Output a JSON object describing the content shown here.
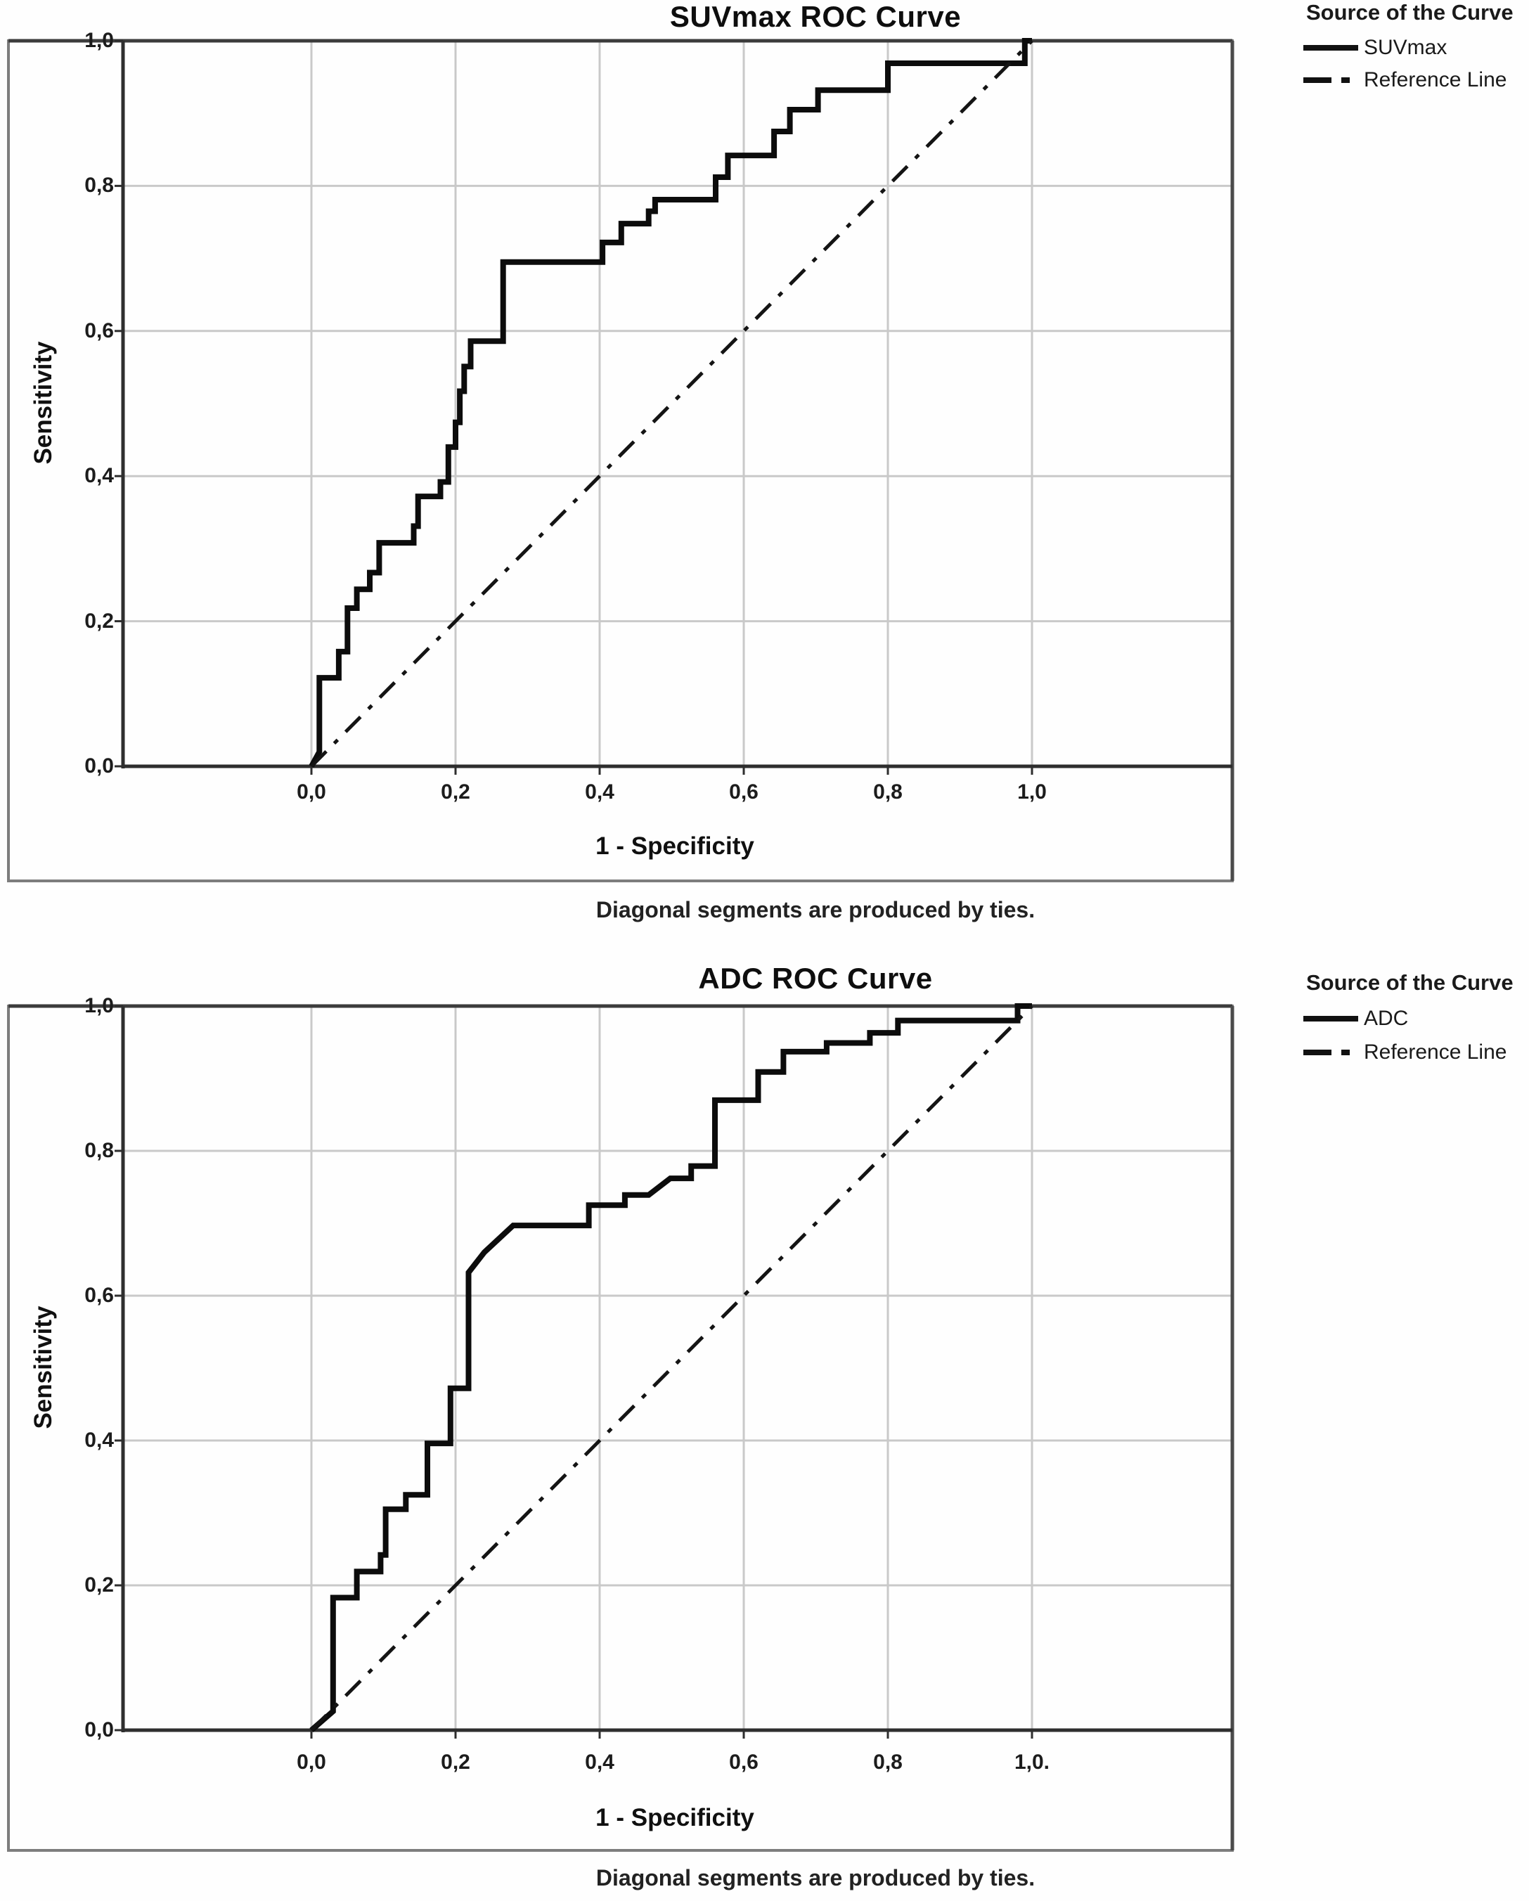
{
  "page_type": "SPSS ROC curve output, two stacked panels",
  "chart_data": [
    {
      "type": "line",
      "subtype": "roc-step",
      "title": "SUVmax ROC Curve",
      "xlabel": "1 - Specificity",
      "ylabel": "Sensitivity",
      "caption": "Diagonal segments are produced by ties.",
      "xlim": [
        0,
        1
      ],
      "ylim": [
        0,
        1
      ],
      "grid": true,
      "x_tick_labels": [
        "0,0",
        "0,2",
        "0,4",
        "0,6",
        "0,8",
        "1,0"
      ],
      "y_tick_labels": [
        "1,0",
        "0,8",
        "0,6",
        "0,4",
        "0,2",
        "0,0"
      ],
      "legend_position": "top-right",
      "legend": {
        "title": "Source of the Curve",
        "items": [
          {
            "label": "SUVmax",
            "line_style": "solid"
          },
          {
            "label": "Reference Line",
            "line_style": "dash-dot"
          }
        ]
      },
      "series": [
        {
          "name": "SUVmax",
          "style": "solid",
          "points": [
            [
              0,
              0
            ],
            [
              0.011,
              0.02
            ],
            [
              0.011,
              0.122
            ],
            [
              0.038,
              0.122
            ],
            [
              0.038,
              0.158
            ],
            [
              0.05,
              0.158
            ],
            [
              0.05,
              0.218
            ],
            [
              0.063,
              0.218
            ],
            [
              0.063,
              0.244
            ],
            [
              0.081,
              0.244
            ],
            [
              0.081,
              0.267
            ],
            [
              0.094,
              0.267
            ],
            [
              0.094,
              0.308
            ],
            [
              0.142,
              0.308
            ],
            [
              0.142,
              0.331
            ],
            [
              0.148,
              0.331
            ],
            [
              0.148,
              0.372
            ],
            [
              0.179,
              0.372
            ],
            [
              0.179,
              0.392
            ],
            [
              0.19,
              0.392
            ],
            [
              0.19,
              0.44
            ],
            [
              0.2,
              0.44
            ],
            [
              0.2,
              0.474
            ],
            [
              0.206,
              0.474
            ],
            [
              0.206,
              0.517
            ],
            [
              0.212,
              0.517
            ],
            [
              0.212,
              0.551
            ],
            [
              0.221,
              0.551
            ],
            [
              0.221,
              0.586
            ],
            [
              0.266,
              0.586
            ],
            [
              0.266,
              0.695
            ],
            [
              0.404,
              0.695
            ],
            [
              0.404,
              0.722
            ],
            [
              0.43,
              0.722
            ],
            [
              0.43,
              0.748
            ],
            [
              0.468,
              0.748
            ],
            [
              0.468,
              0.765
            ],
            [
              0.477,
              0.765
            ],
            [
              0.477,
              0.781
            ],
            [
              0.561,
              0.781
            ],
            [
              0.561,
              0.812
            ],
            [
              0.578,
              0.812
            ],
            [
              0.578,
              0.842
            ],
            [
              0.642,
              0.842
            ],
            [
              0.642,
              0.875
            ],
            [
              0.664,
              0.875
            ],
            [
              0.664,
              0.905
            ],
            [
              0.703,
              0.905
            ],
            [
              0.703,
              0.932
            ],
            [
              0.8,
              0.932
            ],
            [
              0.8,
              0.969
            ],
            [
              0.99,
              0.969
            ],
            [
              0.99,
              1
            ],
            [
              1,
              1
            ]
          ]
        },
        {
          "name": "Reference Line",
          "style": "dash-dot",
          "points": [
            [
              0,
              0
            ],
            [
              1,
              1
            ]
          ]
        }
      ]
    },
    {
      "type": "line",
      "subtype": "roc-step",
      "title": "ADC ROC Curve",
      "xlabel": "1 - Specificity",
      "ylabel": "Sensitivity",
      "caption": "Diagonal segments are produced by ties.",
      "xlim": [
        0,
        1
      ],
      "ylim": [
        0,
        1
      ],
      "grid": true,
      "x_tick_labels": [
        "0,0",
        "0,2",
        "0,4",
        "0,6",
        "0,8",
        "1,0."
      ],
      "y_tick_labels": [
        "1,0",
        "0,8",
        "0,6",
        "0,4",
        "0,2",
        "0,0"
      ],
      "legend_position": "top-right",
      "legend": {
        "title": "Source of the Curve",
        "items": [
          {
            "label": "ADC",
            "line_style": "solid"
          },
          {
            "label": "Reference Line",
            "line_style": "dash-dot"
          }
        ]
      },
      "series": [
        {
          "name": "ADC",
          "style": "solid",
          "points": [
            [
              0,
              0
            ],
            [
              0.03,
              0.026
            ],
            [
              0.03,
              0.183
            ],
            [
              0.063,
              0.183
            ],
            [
              0.063,
              0.219
            ],
            [
              0.096,
              0.219
            ],
            [
              0.096,
              0.242
            ],
            [
              0.103,
              0.242
            ],
            [
              0.103,
              0.305
            ],
            [
              0.131,
              0.305
            ],
            [
              0.131,
              0.325
            ],
            [
              0.161,
              0.325
            ],
            [
              0.161,
              0.396
            ],
            [
              0.193,
              0.396
            ],
            [
              0.193,
              0.472
            ],
            [
              0.218,
              0.472
            ],
            [
              0.218,
              0.632
            ],
            [
              0.24,
              0.66
            ],
            [
              0.28,
              0.697
            ],
            [
              0.385,
              0.697
            ],
            [
              0.385,
              0.725
            ],
            [
              0.435,
              0.725
            ],
            [
              0.435,
              0.739
            ],
            [
              0.468,
              0.739
            ],
            [
              0.498,
              0.762
            ],
            [
              0.527,
              0.762
            ],
            [
              0.527,
              0.779
            ],
            [
              0.56,
              0.779
            ],
            [
              0.56,
              0.87
            ],
            [
              0.62,
              0.87
            ],
            [
              0.62,
              0.909
            ],
            [
              0.655,
              0.909
            ],
            [
              0.655,
              0.937
            ],
            [
              0.715,
              0.937
            ],
            [
              0.715,
              0.949
            ],
            [
              0.775,
              0.949
            ],
            [
              0.775,
              0.963
            ],
            [
              0.814,
              0.963
            ],
            [
              0.814,
              0.98
            ],
            [
              0.98,
              0.98
            ],
            [
              0.98,
              1
            ],
            [
              1,
              1
            ]
          ]
        },
        {
          "name": "Reference Line",
          "style": "dash-dot",
          "points": [
            [
              0,
              0
            ],
            [
              1,
              1
            ]
          ]
        }
      ]
    }
  ]
}
